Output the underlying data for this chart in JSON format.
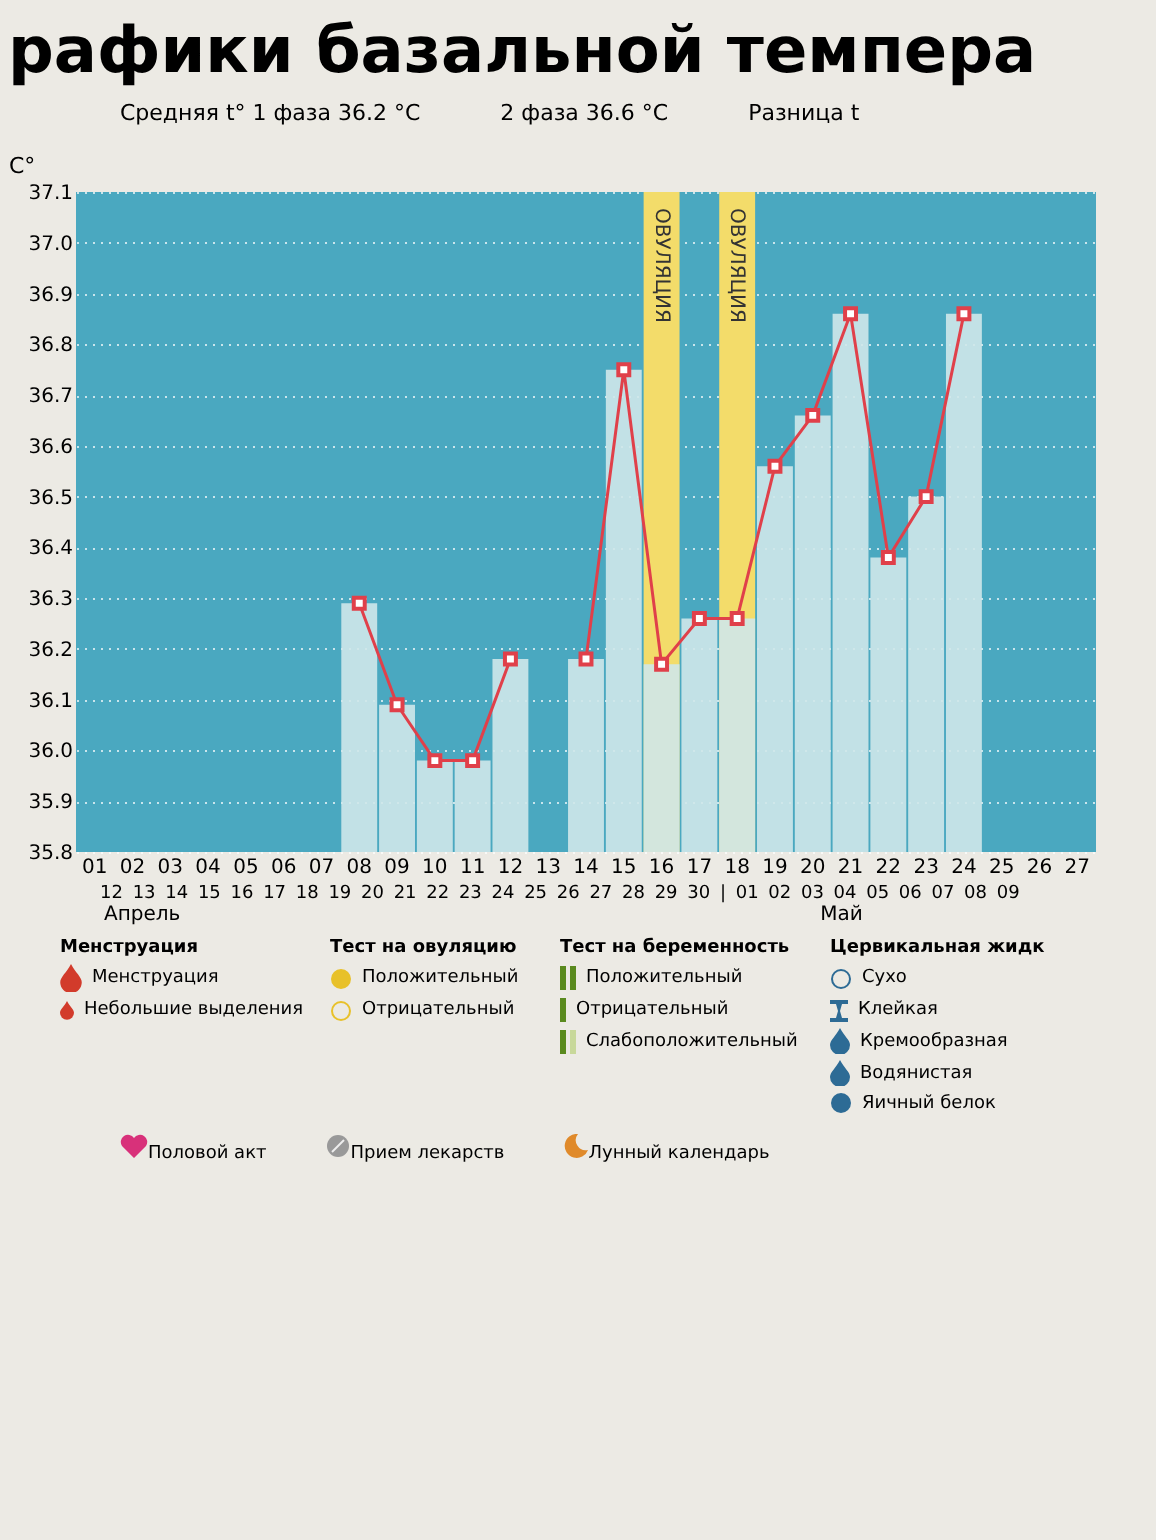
{
  "chart_data": {
    "type": "bar",
    "title": "рафики базальной темпера",
    "ylabel": "C°",
    "categories": [
      "01",
      "02",
      "03",
      "04",
      "05",
      "06",
      "07",
      "08",
      "09",
      "10",
      "11",
      "12",
      "13",
      "14",
      "15",
      "16",
      "17",
      "18",
      "19",
      "20",
      "21",
      "22",
      "23",
      "24",
      "25",
      "26",
      "27"
    ],
    "series": [
      {
        "color": "#cfe7ea",
        "values": [
          null,
          null,
          null,
          null,
          null,
          null,
          null,
          36.29,
          36.09,
          35.98,
          35.98,
          36.18,
          null,
          36.18,
          36.75,
          36.17,
          36.26,
          36.26,
          36.56,
          36.66,
          36.86,
          36.38,
          36.5,
          36.86,
          null,
          null,
          null
        ]
      },
      {
        "type": "line",
        "color": "#e0404a",
        "marker": "square",
        "values": [
          null,
          null,
          null,
          null,
          null,
          null,
          null,
          36.29,
          36.09,
          35.98,
          35.98,
          36.18,
          null,
          36.18,
          36.75,
          36.17,
          36.26,
          36.26,
          36.56,
          36.66,
          36.86,
          36.38,
          36.5,
          36.86,
          null,
          null,
          null
        ]
      }
    ],
    "ylim": [
      35.8,
      37.1
    ],
    "yticks": [
      35.8,
      35.9,
      {
        "value": 36,
        "label": "36.0"
      },
      36.1,
      36.2,
      36.3,
      36.4,
      36.5,
      36.6,
      36.7,
      36.8,
      36.9,
      {
        "value": 37,
        "label": "37.0"
      },
      37.1
    ],
    "grid": "y",
    "bands": [
      {
        "axis": "x",
        "from": "16",
        "to": "16",
        "label": "ОВУЛЯЦИЯ",
        "color": "#f3dc6a"
      },
      {
        "axis": "x",
        "from": "18",
        "to": "18",
        "label": "ОВУЛЯЦИЯ",
        "color": "#f3dc6a"
      }
    ],
    "annotations": [
      "Средняя t° 1 фаза 36.2 °C",
      "2 фаза 36.6 °C",
      "Разница t",
      "12 13 14 15 16 17 18 19 20 21 22 23 24 25 26 27 28 29 30 | 01 02 03 04 05 06 07 08 09",
      "Апрель",
      "Май",
      "Менструация",
      "Менструация",
      "Небольшие выделения",
      "Тест на овуляцию",
      "Положительный",
      "Отрицательный",
      "Тест на беременность",
      "Положительный",
      "Отрицательный",
      "Слабоположительный",
      "Цервикальная жидк",
      "Сухо",
      "Клейкая",
      "Кремообразная",
      "Водянистая",
      "Яичный белок",
      "Половой акт",
      "Прием лекарств",
      "Лунный календарь"
    ]
  }
}
